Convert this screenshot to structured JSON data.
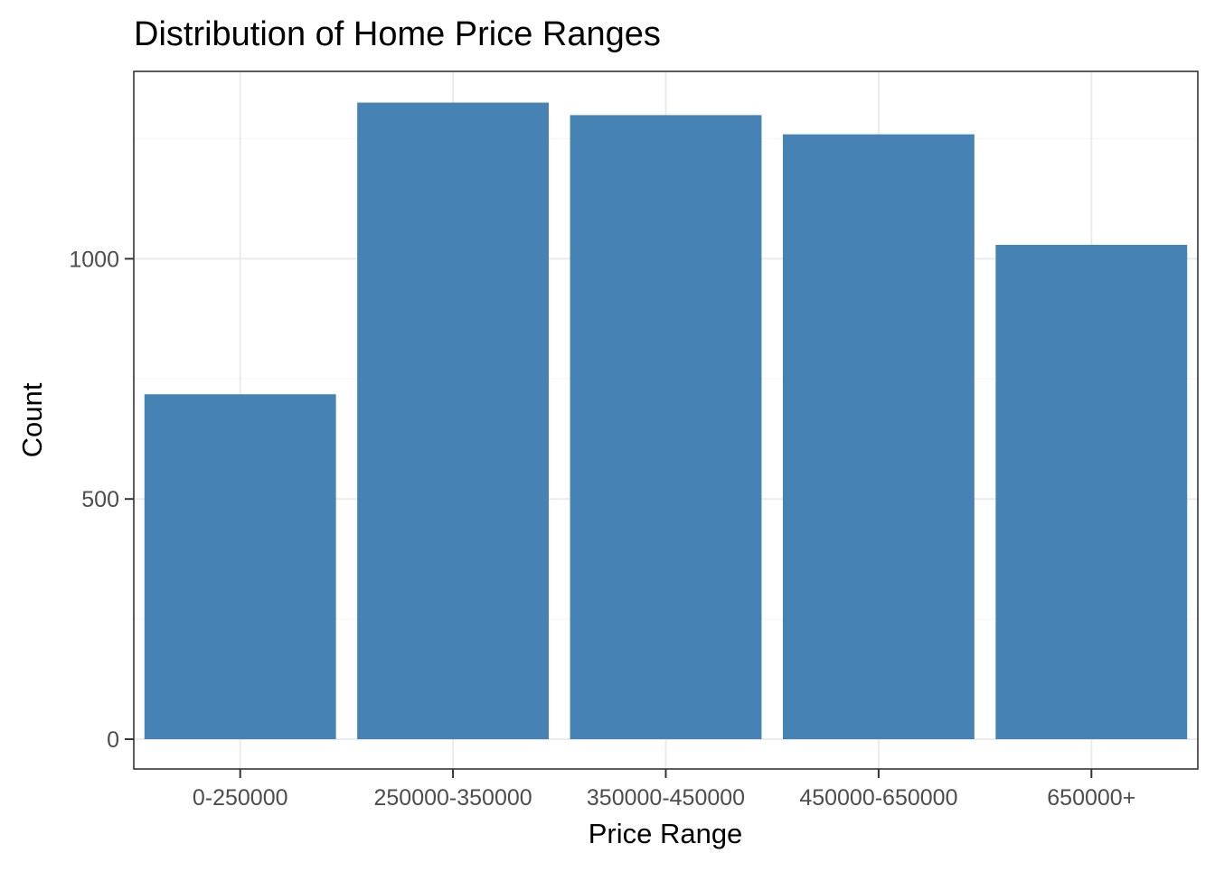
{
  "chart_data": {
    "type": "bar",
    "title": "Distribution of Home Price Ranges",
    "xlabel": "Price Range",
    "ylabel": "Count",
    "categories": [
      "0-250000",
      "250000-350000",
      "350000-450000",
      "450000-650000",
      "650000+"
    ],
    "values": [
      718,
      1325,
      1299,
      1259,
      1029
    ],
    "ylim": [
      -62,
      1390
    ],
    "y_ticks": [
      0,
      500,
      1000
    ],
    "y_tick_labels": [
      "0",
      "500",
      "1000"
    ],
    "grid": true,
    "bar_color": "#4682B4"
  }
}
